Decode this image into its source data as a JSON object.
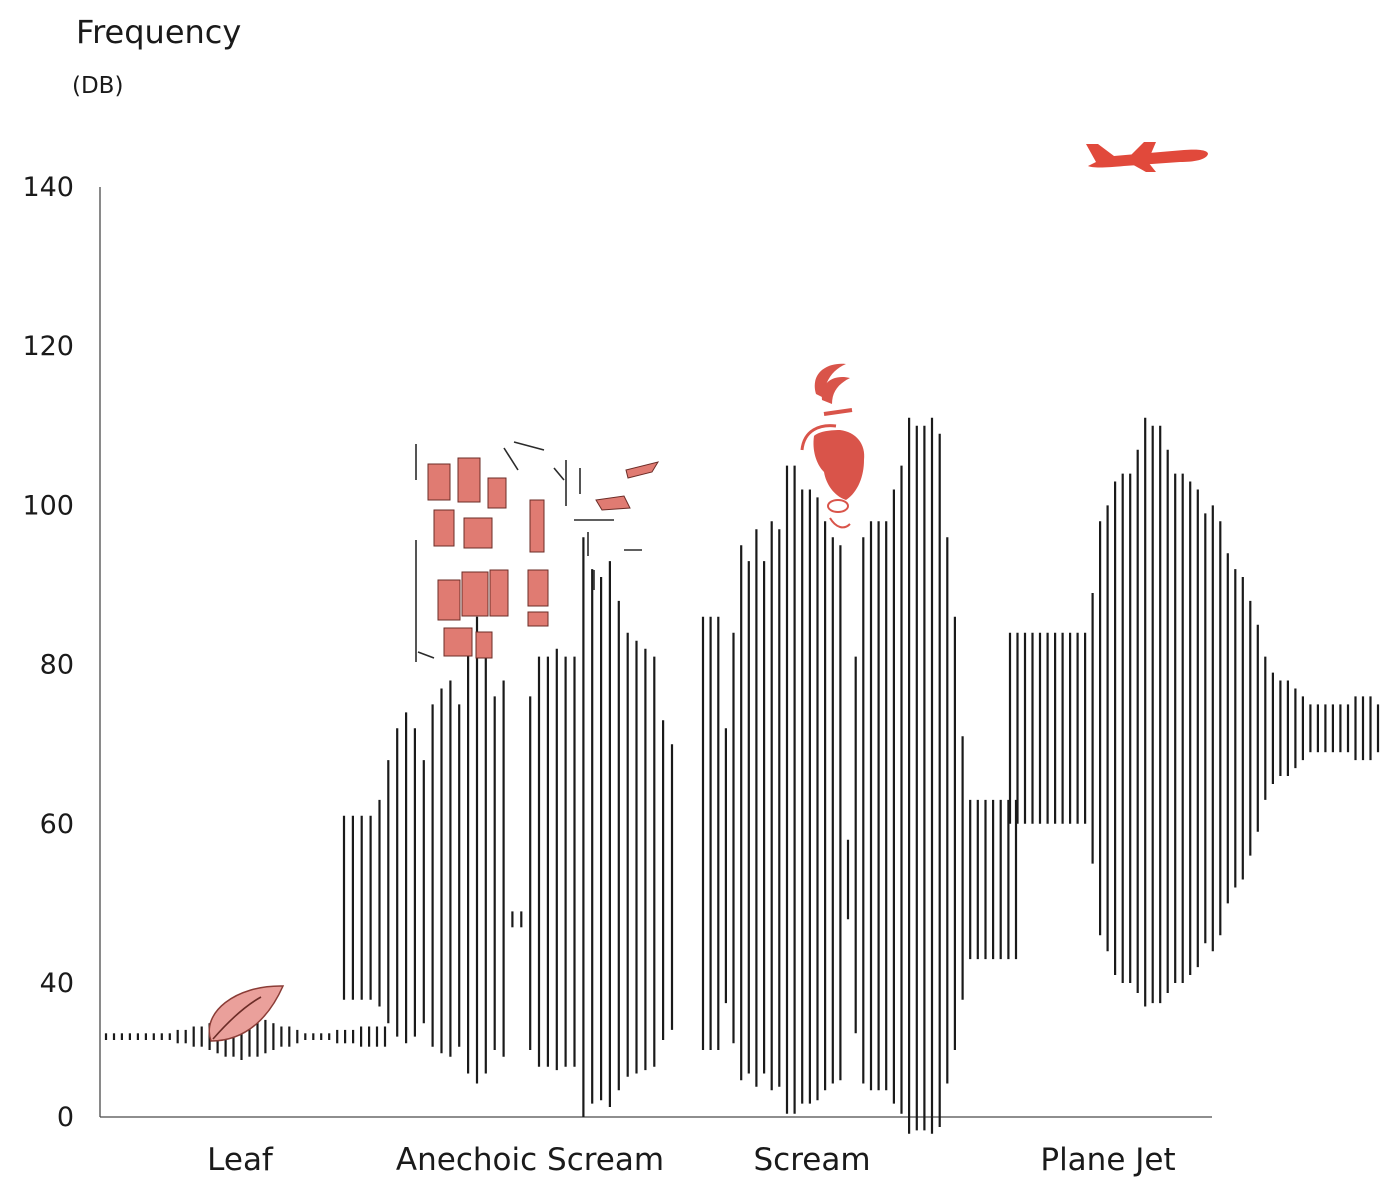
{
  "chart_data": {
    "type": "bar",
    "title": "Frequency",
    "ylabel_unit": "(DB)",
    "ylim": [
      0,
      140
    ],
    "yticks": [
      0,
      40,
      60,
      80,
      100,
      120,
      140
    ],
    "categories": [
      "Leaf",
      "Anechoic Scream",
      "Scream",
      "Plane Jet"
    ],
    "accent_color": "#e1493b",
    "icons": [
      "leaf-icon",
      "anechoic-wall-icon",
      "screaming-face-icon",
      "airplane-icon"
    ],
    "waveforms": [
      {
        "name": "Leaf",
        "center": 24,
        "amplitudes": [
          1,
          1,
          1,
          1,
          1,
          1,
          1,
          1,
          1,
          2,
          2,
          3,
          3,
          4,
          5,
          6,
          6,
          7,
          6,
          6,
          5,
          4,
          3,
          3,
          2,
          1,
          1,
          1,
          1,
          2,
          2,
          2,
          3,
          3,
          3,
          3
        ]
      },
      {
        "name": "Anechoic Scream",
        "center": 48,
        "amplitudes": [
          13,
          13,
          13,
          13,
          15,
          20,
          24,
          26,
          24,
          20,
          27,
          29,
          30,
          27,
          35,
          38,
          35,
          28,
          30,
          1,
          1,
          28,
          33,
          33,
          34,
          33,
          33,
          48,
          44,
          43,
          45,
          40,
          36,
          35,
          34,
          33,
          25,
          22
        ]
      },
      {
        "name": "Scream",
        "center": 53,
        "amplitudes": [
          33,
          33,
          33,
          19,
          31,
          42,
          40,
          44,
          40,
          45,
          44,
          52,
          52,
          49,
          49,
          48,
          45,
          43,
          42,
          5,
          28,
          43,
          45,
          45,
          45,
          49,
          52,
          58,
          57,
          57,
          58,
          56,
          43,
          33,
          18,
          10,
          10,
          10,
          10,
          10,
          10,
          10
        ]
      },
      {
        "name": "Plane Jet",
        "center": 72,
        "amplitudes": [
          12,
          12,
          12,
          12,
          12,
          12,
          12,
          12,
          12,
          12,
          12,
          17,
          26,
          28,
          31,
          32,
          32,
          35,
          39,
          38,
          38,
          35,
          32,
          32,
          31,
          30,
          27,
          28,
          26,
          22,
          20,
          19,
          16,
          13,
          9,
          7,
          6,
          6,
          5,
          4,
          3,
          3,
          3,
          3,
          3,
          3,
          4,
          4,
          4,
          3
        ]
      }
    ]
  }
}
